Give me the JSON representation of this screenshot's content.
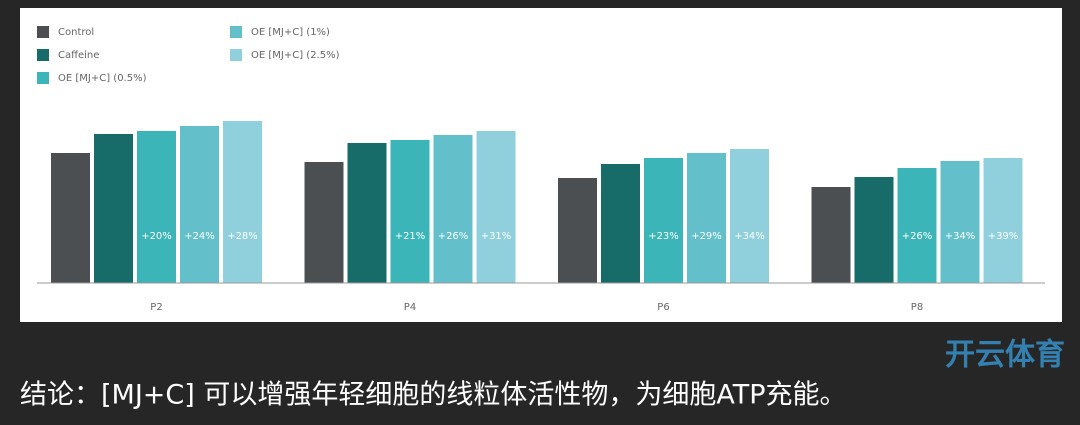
{
  "chart_data": {
    "type": "bar",
    "categories": [
      "P2",
      "P4",
      "P6",
      "P8"
    ],
    "ylim": [
      0,
      170
    ],
    "series": [
      {
        "name": "Control",
        "color": "#4c4f51",
        "values": [
          130,
          121,
          105,
          96
        ],
        "labels": [
          null,
          null,
          null,
          null
        ]
      },
      {
        "name": "Caffeine",
        "color": "#176b69",
        "values": [
          149,
          140,
          119,
          106
        ],
        "labels": [
          null,
          null,
          null,
          null
        ]
      },
      {
        "name": "OE [MJ+C] (0.5%)",
        "color": "#3bb5b8",
        "values": [
          152,
          143,
          125,
          115
        ],
        "labels": [
          "+20%",
          "+21%",
          "+23%",
          "+26%"
        ]
      },
      {
        "name": "OE [MJ+C] (1%)",
        "color": "#63bfca",
        "values": [
          157,
          148,
          130,
          122
        ],
        "labels": [
          "+24%",
          "+26%",
          "+29%",
          "+34%"
        ]
      },
      {
        "name": "OE [MJ+C] (2.5%)",
        "color": "#8fd0dc",
        "values": [
          162,
          152,
          134,
          125
        ],
        "labels": [
          "+28%",
          "+31%",
          "+34%",
          "+39%"
        ]
      }
    ]
  },
  "caption": "结论：[MJ+C] 可以增强年轻细胞的线粒体活性物，为细胞ATP充能。",
  "watermark": "开云体育"
}
